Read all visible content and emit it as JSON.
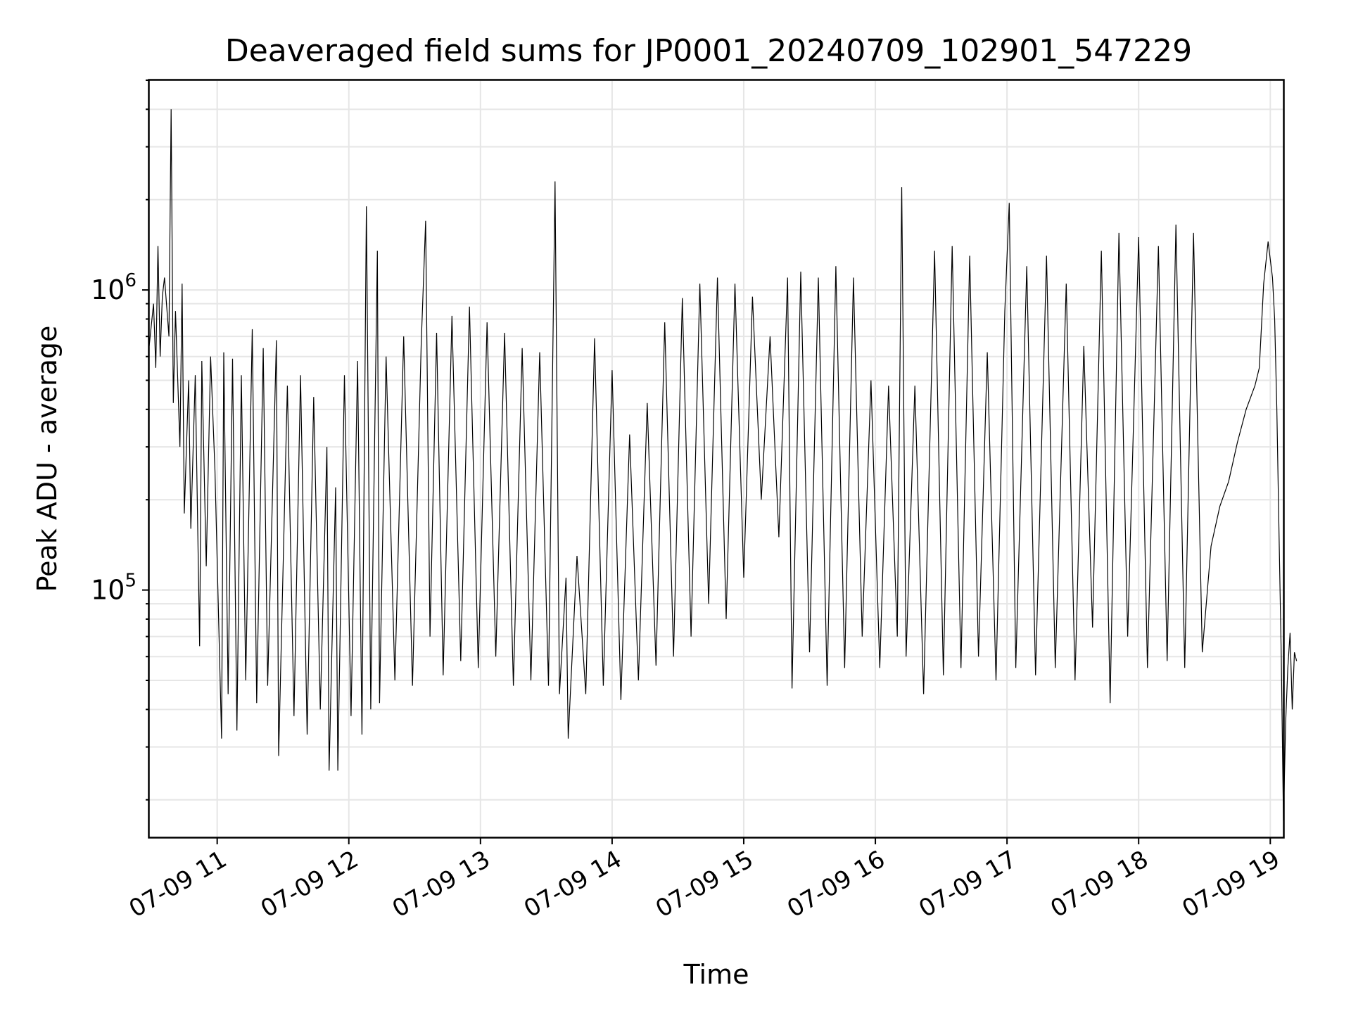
{
  "chart_data": {
    "type": "line",
    "title": "Deaveraged field sums for JP0001_20240709_102901_547229",
    "xlabel": "Time",
    "ylabel": "Peak ADU - average",
    "yscale": "log",
    "ylim": [
      15000,
      5000000
    ],
    "xlim": [
      "2024-07-09 10:29:00",
      "2024-07-09 19:06:00"
    ],
    "grid": true,
    "x_ticks": [
      {
        "t": "2024-07-09 11:00",
        "label": "07-09 11"
      },
      {
        "t": "2024-07-09 12:00",
        "label": "07-09 12"
      },
      {
        "t": "2024-07-09 13:00",
        "label": "07-09 13"
      },
      {
        "t": "2024-07-09 14:00",
        "label": "07-09 14"
      },
      {
        "t": "2024-07-09 15:00",
        "label": "07-09 15"
      },
      {
        "t": "2024-07-09 16:00",
        "label": "07-09 16"
      },
      {
        "t": "2024-07-09 17:00",
        "label": "07-09 17"
      },
      {
        "t": "2024-07-09 18:00",
        "label": "07-09 18"
      },
      {
        "t": "2024-07-09 19:00",
        "label": "07-09 19"
      }
    ],
    "y_ticks": [
      {
        "value": 100000,
        "base": "10",
        "exp": "5"
      },
      {
        "value": 1000000,
        "base": "10",
        "exp": "6"
      }
    ],
    "series": [
      {
        "color": "#000000",
        "points": [
          [
            "2024-07-09 10:29",
            650000
          ],
          [
            "2024-07-09 10:31",
            900000
          ],
          [
            "2024-07-09 10:32",
            550000
          ],
          [
            "2024-07-09 10:33",
            1400000
          ],
          [
            "2024-07-09 10:34",
            600000
          ],
          [
            "2024-07-09 10:35",
            950000
          ],
          [
            "2024-07-09 10:36",
            1100000
          ],
          [
            "2024-07-09 10:38",
            700000
          ],
          [
            "2024-07-09 10:39",
            4000000
          ],
          [
            "2024-07-09 10:40",
            420000
          ],
          [
            "2024-07-09 10:41",
            850000
          ],
          [
            "2024-07-09 10:43",
            300000
          ],
          [
            "2024-07-09 10:44",
            1050000
          ],
          [
            "2024-07-09 10:45",
            180000
          ],
          [
            "2024-07-09 10:47",
            500000
          ],
          [
            "2024-07-09 10:48",
            160000
          ],
          [
            "2024-07-09 10:50",
            520000
          ],
          [
            "2024-07-09 10:52",
            65000
          ],
          [
            "2024-07-09 10:53",
            580000
          ],
          [
            "2024-07-09 10:55",
            120000
          ],
          [
            "2024-07-09 10:57",
            600000
          ],
          [
            "2024-07-09 10:59",
            250000
          ],
          [
            "2024-07-09 11:02",
            32000
          ],
          [
            "2024-07-09 11:03",
            620000
          ],
          [
            "2024-07-09 11:05",
            45000
          ],
          [
            "2024-07-09 11:07",
            590000
          ],
          [
            "2024-07-09 11:09",
            34000
          ],
          [
            "2024-07-09 11:11",
            520000
          ],
          [
            "2024-07-09 11:13",
            50000
          ],
          [
            "2024-07-09 11:16",
            740000
          ],
          [
            "2024-07-09 11:18",
            42000
          ],
          [
            "2024-07-09 11:21",
            640000
          ],
          [
            "2024-07-09 11:23",
            48000
          ],
          [
            "2024-07-09 11:27",
            680000
          ],
          [
            "2024-07-09 11:28",
            28000
          ],
          [
            "2024-07-09 11:32",
            480000
          ],
          [
            "2024-07-09 11:35",
            38000
          ],
          [
            "2024-07-09 11:38",
            520000
          ],
          [
            "2024-07-09 11:41",
            33000
          ],
          [
            "2024-07-09 11:44",
            440000
          ],
          [
            "2024-07-09 11:47",
            40000
          ],
          [
            "2024-07-09 11:50",
            300000
          ],
          [
            "2024-07-09 11:51",
            25000
          ],
          [
            "2024-07-09 11:54",
            220000
          ],
          [
            "2024-07-09 11:55",
            25000
          ],
          [
            "2024-07-09 11:58",
            520000
          ],
          [
            "2024-07-09 12:01",
            38000
          ],
          [
            "2024-07-09 12:04",
            580000
          ],
          [
            "2024-07-09 12:06",
            33000
          ],
          [
            "2024-07-09 12:08",
            1900000
          ],
          [
            "2024-07-09 12:10",
            40000
          ],
          [
            "2024-07-09 12:13",
            1350000
          ],
          [
            "2024-07-09 12:14",
            42000
          ],
          [
            "2024-07-09 12:17",
            600000
          ],
          [
            "2024-07-09 12:21",
            50000
          ],
          [
            "2024-07-09 12:25",
            700000
          ],
          [
            "2024-07-09 12:29",
            48000
          ],
          [
            "2024-07-09 12:33",
            660000
          ],
          [
            "2024-07-09 12:35",
            1700000
          ],
          [
            "2024-07-09 12:37",
            70000
          ],
          [
            "2024-07-09 12:40",
            720000
          ],
          [
            "2024-07-09 12:43",
            52000
          ],
          [
            "2024-07-09 12:47",
            820000
          ],
          [
            "2024-07-09 12:51",
            58000
          ],
          [
            "2024-07-09 12:55",
            880000
          ],
          [
            "2024-07-09 12:59",
            55000
          ],
          [
            "2024-07-09 13:03",
            780000
          ],
          [
            "2024-07-09 13:07",
            60000
          ],
          [
            "2024-07-09 13:11",
            720000
          ],
          [
            "2024-07-09 13:15",
            48000
          ],
          [
            "2024-07-09 13:19",
            640000
          ],
          [
            "2024-07-09 13:23",
            50000
          ],
          [
            "2024-07-09 13:27",
            620000
          ],
          [
            "2024-07-09 13:31",
            48000
          ],
          [
            "2024-07-09 13:34",
            2300000
          ],
          [
            "2024-07-09 13:36",
            45000
          ],
          [
            "2024-07-09 13:39",
            110000
          ],
          [
            "2024-07-09 13:40",
            32000
          ],
          [
            "2024-07-09 13:44",
            130000
          ],
          [
            "2024-07-09 13:48",
            45000
          ],
          [
            "2024-07-09 13:52",
            690000
          ],
          [
            "2024-07-09 13:56",
            48000
          ],
          [
            "2024-07-09 14:00",
            540000
          ],
          [
            "2024-07-09 14:04",
            43000
          ],
          [
            "2024-07-09 14:08",
            330000
          ],
          [
            "2024-07-09 14:12",
            50000
          ],
          [
            "2024-07-09 14:16",
            420000
          ],
          [
            "2024-07-09 14:20",
            56000
          ],
          [
            "2024-07-09 14:24",
            780000
          ],
          [
            "2024-07-09 14:28",
            60000
          ],
          [
            "2024-07-09 14:32",
            940000
          ],
          [
            "2024-07-09 14:36",
            70000
          ],
          [
            "2024-07-09 14:40",
            1050000
          ],
          [
            "2024-07-09 14:44",
            90000
          ],
          [
            "2024-07-09 14:48",
            1100000
          ],
          [
            "2024-07-09 14:52",
            80000
          ],
          [
            "2024-07-09 14:56",
            1050000
          ],
          [
            "2024-07-09 15:00",
            110000
          ],
          [
            "2024-07-09 15:04",
            950000
          ],
          [
            "2024-07-09 15:08",
            200000
          ],
          [
            "2024-07-09 15:12",
            700000
          ],
          [
            "2024-07-09 15:16",
            150000
          ],
          [
            "2024-07-09 15:20",
            1100000
          ],
          [
            "2024-07-09 15:22",
            47000
          ],
          [
            "2024-07-09 15:26",
            1150000
          ],
          [
            "2024-07-09 15:30",
            62000
          ],
          [
            "2024-07-09 15:34",
            1100000
          ],
          [
            "2024-07-09 15:38",
            48000
          ],
          [
            "2024-07-09 15:42",
            1200000
          ],
          [
            "2024-07-09 15:46",
            55000
          ],
          [
            "2024-07-09 15:50",
            1100000
          ],
          [
            "2024-07-09 15:54",
            70000
          ],
          [
            "2024-07-09 15:58",
            500000
          ],
          [
            "2024-07-09 16:02",
            55000
          ],
          [
            "2024-07-09 16:06",
            480000
          ],
          [
            "2024-07-09 16:10",
            70000
          ],
          [
            "2024-07-09 16:12",
            2200000
          ],
          [
            "2024-07-09 16:14",
            60000
          ],
          [
            "2024-07-09 16:18",
            480000
          ],
          [
            "2024-07-09 16:22",
            45000
          ],
          [
            "2024-07-09 16:27",
            1350000
          ],
          [
            "2024-07-09 16:31",
            52000
          ],
          [
            "2024-07-09 16:35",
            1400000
          ],
          [
            "2024-07-09 16:39",
            55000
          ],
          [
            "2024-07-09 16:43",
            1300000
          ],
          [
            "2024-07-09 16:47",
            60000
          ],
          [
            "2024-07-09 16:51",
            620000
          ],
          [
            "2024-07-09 16:55",
            50000
          ],
          [
            "2024-07-09 16:59",
            850000
          ],
          [
            "2024-07-09 17:01",
            1950000
          ],
          [
            "2024-07-09 17:04",
            55000
          ],
          [
            "2024-07-09 17:09",
            1200000
          ],
          [
            "2024-07-09 17:13",
            52000
          ],
          [
            "2024-07-09 17:18",
            1300000
          ],
          [
            "2024-07-09 17:22",
            55000
          ],
          [
            "2024-07-09 17:27",
            1050000
          ],
          [
            "2024-07-09 17:31",
            50000
          ],
          [
            "2024-07-09 17:35",
            650000
          ],
          [
            "2024-07-09 17:39",
            75000
          ],
          [
            "2024-07-09 17:43",
            1350000
          ],
          [
            "2024-07-09 17:47",
            42000
          ],
          [
            "2024-07-09 17:51",
            1550000
          ],
          [
            "2024-07-09 17:55",
            70000
          ],
          [
            "2024-07-09 18:00",
            1500000
          ],
          [
            "2024-07-09 18:04",
            55000
          ],
          [
            "2024-07-09 18:09",
            1400000
          ],
          [
            "2024-07-09 18:13",
            58000
          ],
          [
            "2024-07-09 18:17",
            1650000
          ],
          [
            "2024-07-09 18:21",
            55000
          ],
          [
            "2024-07-09 18:25",
            1550000
          ],
          [
            "2024-07-09 18:29",
            62000
          ],
          [
            "2024-07-09 18:33",
            140000
          ],
          [
            "2024-07-09 18:37",
            190000
          ],
          [
            "2024-07-09 18:41",
            230000
          ],
          [
            "2024-07-09 18:45",
            310000
          ],
          [
            "2024-07-09 18:49",
            400000
          ],
          [
            "2024-07-09 18:53",
            480000
          ],
          [
            "2024-07-09 18:55",
            550000
          ],
          [
            "2024-07-09 18:57",
            1050000
          ],
          [
            "2024-07-09 18:59",
            1450000
          ],
          [
            "2024-07-09 19:01",
            1100000
          ],
          [
            "2024-07-09 19:02",
            800000
          ],
          [
            "2024-07-09 19:03",
            400000
          ],
          [
            "2024-07-09 19:04",
            150000
          ],
          [
            "2024-07-09 19:05",
            60000
          ],
          [
            "2024-07-09 19:06",
            17000
          ],
          [
            "2024-07-09 19:07",
            36000
          ],
          [
            "2024-07-09 19:08",
            55000
          ],
          [
            "2024-07-09 19:09",
            72000
          ],
          [
            "2024-07-09 19:10",
            40000
          ],
          [
            "2024-07-09 19:11",
            62000
          ],
          [
            "2024-07-09 19:12",
            58000
          ]
        ]
      }
    ]
  }
}
